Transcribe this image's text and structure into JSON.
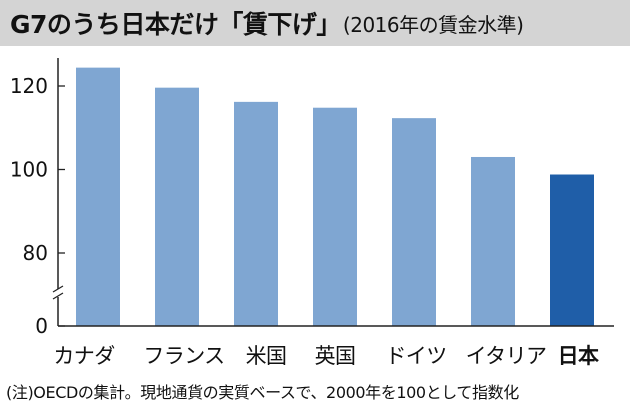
{
  "title": {
    "main": "G7のうち日本だけ「賃下げ」",
    "sub": "(2016年の賃金水準)"
  },
  "footnote": "(注)OECDの集計。現地通貨の実質ベースで、2000年を100として指数化",
  "colors": {
    "bar": "#7fa6d2",
    "highlight": "#1f5ea8",
    "title_bg": "#d4d4d4",
    "axis": "#222222"
  },
  "chart_data": {
    "type": "bar",
    "categories": [
      "カナダ",
      "フランス",
      "米国",
      "英国",
      "ドイツ",
      "イタリア",
      "日本"
    ],
    "values": [
      124.4,
      119.6,
      116.2,
      114.8,
      112.3,
      103.0,
      98.8
    ],
    "highlight_index": 6,
    "y_ticks": [
      0,
      80,
      100,
      120
    ],
    "axis_break": true,
    "ylim": [
      0,
      126
    ]
  }
}
